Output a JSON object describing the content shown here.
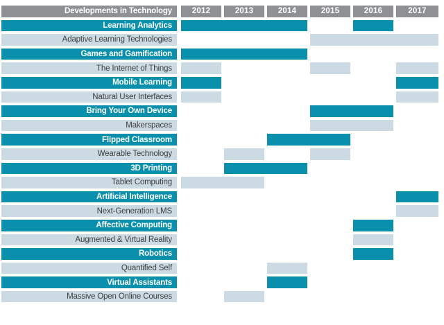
{
  "colors": {
    "teal": "#0a90ad",
    "light": "#ccdae3",
    "header_bg": "#8e9093",
    "header_text": "#ffffff",
    "dark_text": "#3d3d3d",
    "background": "#ffffff"
  },
  "header": {
    "title": "Developments in Technology",
    "years": [
      "2012",
      "2013",
      "2014",
      "2015",
      "2016",
      "2017"
    ]
  },
  "chart_data": {
    "type": "table",
    "title": "Developments in Technology",
    "columns": [
      2012,
      2013,
      2014,
      2015,
      2016,
      2017
    ],
    "legend": "Gantt-style timeline: filled cells mark the years each technology development is active; teal and light-blue row styles alternate",
    "rows": [
      {
        "label": "Learning Analytics",
        "style": "teal",
        "spans": [
          [
            2012,
            2014
          ],
          [
            2016,
            2016
          ]
        ]
      },
      {
        "label": "Adaptive Learning Technologies",
        "style": "light",
        "spans": [
          [
            2015,
            2017
          ]
        ]
      },
      {
        "label": "Games and Gamification",
        "style": "teal",
        "spans": [
          [
            2012,
            2014
          ]
        ]
      },
      {
        "label": "The Internet of Things",
        "style": "light",
        "spans": [
          [
            2012,
            2012
          ],
          [
            2015,
            2015
          ],
          [
            2017,
            2017
          ]
        ]
      },
      {
        "label": "Mobile Learning",
        "style": "teal",
        "spans": [
          [
            2012,
            2012
          ],
          [
            2017,
            2017
          ]
        ]
      },
      {
        "label": "Natural User Interfaces",
        "style": "light",
        "spans": [
          [
            2012,
            2012
          ],
          [
            2017,
            2017
          ]
        ]
      },
      {
        "label": "Bring Your Own Device",
        "style": "teal",
        "spans": [
          [
            2015,
            2016
          ]
        ]
      },
      {
        "label": "Makerspaces",
        "style": "light",
        "spans": [
          [
            2015,
            2016
          ]
        ]
      },
      {
        "label": "Flipped Classroom",
        "style": "teal",
        "spans": [
          [
            2014,
            2015
          ]
        ]
      },
      {
        "label": "Wearable Technology",
        "style": "light",
        "spans": [
          [
            2013,
            2013
          ],
          [
            2015,
            2015
          ]
        ]
      },
      {
        "label": "3D Printing",
        "style": "teal",
        "spans": [
          [
            2013,
            2014
          ]
        ]
      },
      {
        "label": "Tablet Computing",
        "style": "light",
        "spans": [
          [
            2012,
            2013
          ]
        ]
      },
      {
        "label": "Artificial Intelligence",
        "style": "teal",
        "spans": [
          [
            2017,
            2017
          ]
        ]
      },
      {
        "label": "Next-Generation LMS",
        "style": "light",
        "spans": [
          [
            2017,
            2017
          ]
        ]
      },
      {
        "label": "Affective Computing",
        "style": "teal",
        "spans": [
          [
            2016,
            2016
          ]
        ]
      },
      {
        "label": "Augmented & Virtual Reality",
        "style": "light",
        "spans": [
          [
            2016,
            2016
          ]
        ]
      },
      {
        "label": "Robotics",
        "style": "teal",
        "spans": [
          [
            2016,
            2016
          ]
        ]
      },
      {
        "label": "Quantified Self",
        "style": "light",
        "spans": [
          [
            2014,
            2014
          ]
        ]
      },
      {
        "label": "Virtual Assistants",
        "style": "teal",
        "spans": [
          [
            2014,
            2014
          ]
        ]
      },
      {
        "label": "Massive Open Online Courses",
        "style": "light",
        "spans": [
          [
            2013,
            2013
          ]
        ]
      }
    ]
  }
}
